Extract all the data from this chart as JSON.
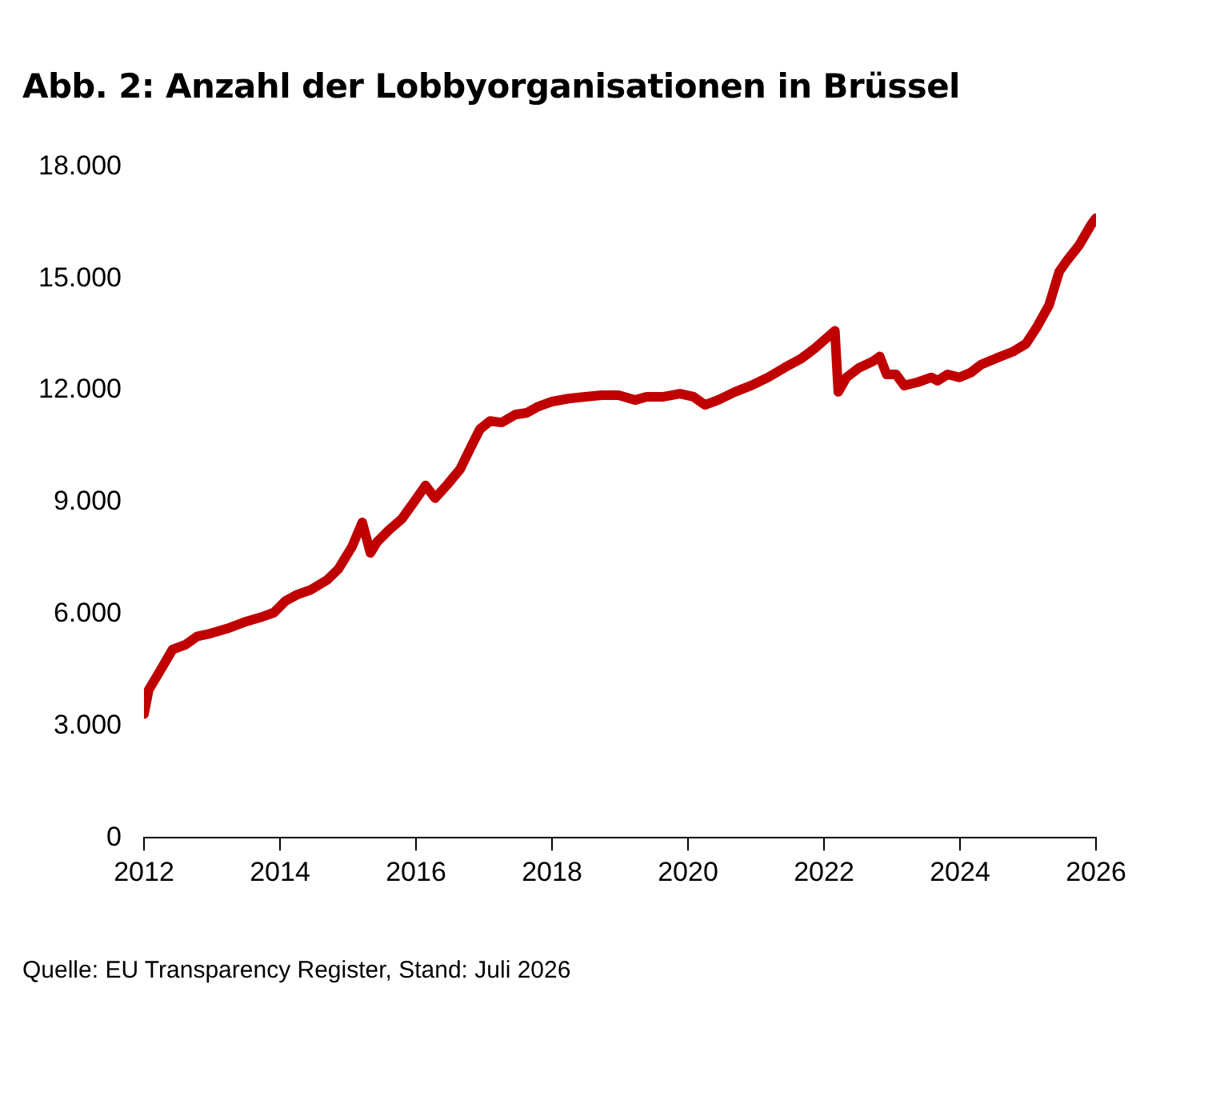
{
  "chart_data": {
    "type": "line",
    "title": "Abb. 2: Anzahl der Lobbyorganisationen in Brüssel",
    "annotations": [
      "Quelle: EU Transparency Register, Stand: Juli 2026"
    ],
    "x": [
      2012.0,
      2012.07,
      2012.24,
      2012.42,
      2012.61,
      2012.78,
      2012.98,
      2013.22,
      2013.47,
      2013.71,
      2013.91,
      2014.08,
      2014.25,
      2014.45,
      2014.69,
      2014.86,
      2015.06,
      2015.21,
      2015.33,
      2015.43,
      2015.6,
      2015.79,
      2015.96,
      2016.14,
      2016.28,
      2016.45,
      2016.65,
      2016.8,
      2016.94,
      2017.09,
      2017.26,
      2017.46,
      2017.63,
      2017.8,
      2018.0,
      2018.24,
      2018.49,
      2018.73,
      2018.98,
      2019.22,
      2019.39,
      2019.64,
      2019.88,
      2020.08,
      2020.25,
      2020.44,
      2020.69,
      2020.93,
      2021.18,
      2021.42,
      2021.67,
      2021.86,
      2022.08,
      2022.16,
      2022.21,
      2022.33,
      2022.52,
      2022.72,
      2022.82,
      2022.92,
      2023.06,
      2023.18,
      2023.38,
      2023.58,
      2023.67,
      2023.82,
      2023.99,
      2024.16,
      2024.31,
      2024.53,
      2024.78,
      2024.97,
      2025.14,
      2025.31,
      2025.46,
      2025.58,
      2025.75,
      2025.93,
      2026.0
    ],
    "series": [
      {
        "color": "#c00000",
        "values": [
          3320,
          3970,
          4490,
          5050,
          5180,
          5400,
          5480,
          5610,
          5780,
          5910,
          6040,
          6350,
          6520,
          6650,
          6910,
          7210,
          7810,
          8460,
          7640,
          7940,
          8250,
          8550,
          8980,
          9450,
          9110,
          9450,
          9890,
          10450,
          10960,
          11180,
          11140,
          11350,
          11400,
          11570,
          11700,
          11780,
          11830,
          11870,
          11870,
          11740,
          11830,
          11830,
          11910,
          11830,
          11610,
          11740,
          11960,
          12130,
          12350,
          12610,
          12860,
          13120,
          13470,
          13600,
          11960,
          12350,
          12610,
          12780,
          12910,
          12430,
          12430,
          12130,
          12220,
          12350,
          12260,
          12430,
          12350,
          12480,
          12690,
          12860,
          13040,
          13250,
          13730,
          14290,
          15190,
          15500,
          15890,
          16450,
          16620
        ]
      }
    ],
    "xlim": [
      2012,
      2026
    ],
    "xticks": [
      2012,
      2014,
      2016,
      2018,
      2020,
      2022,
      2024,
      2026
    ],
    "ylim": [
      0,
      18000
    ],
    "yticks": [
      {
        "value": 0,
        "label": "0"
      },
      {
        "value": 3000,
        "label": "3.000"
      },
      {
        "value": 6000,
        "label": "6.000"
      },
      {
        "value": 9000,
        "label": "9.000"
      },
      {
        "value": 12000,
        "label": "12.000"
      },
      {
        "value": 15000,
        "label": "15.000"
      },
      {
        "value": 18000,
        "label": "18.000"
      }
    ],
    "grid": false,
    "legend": false,
    "marker": "none",
    "line_style": "solid"
  }
}
